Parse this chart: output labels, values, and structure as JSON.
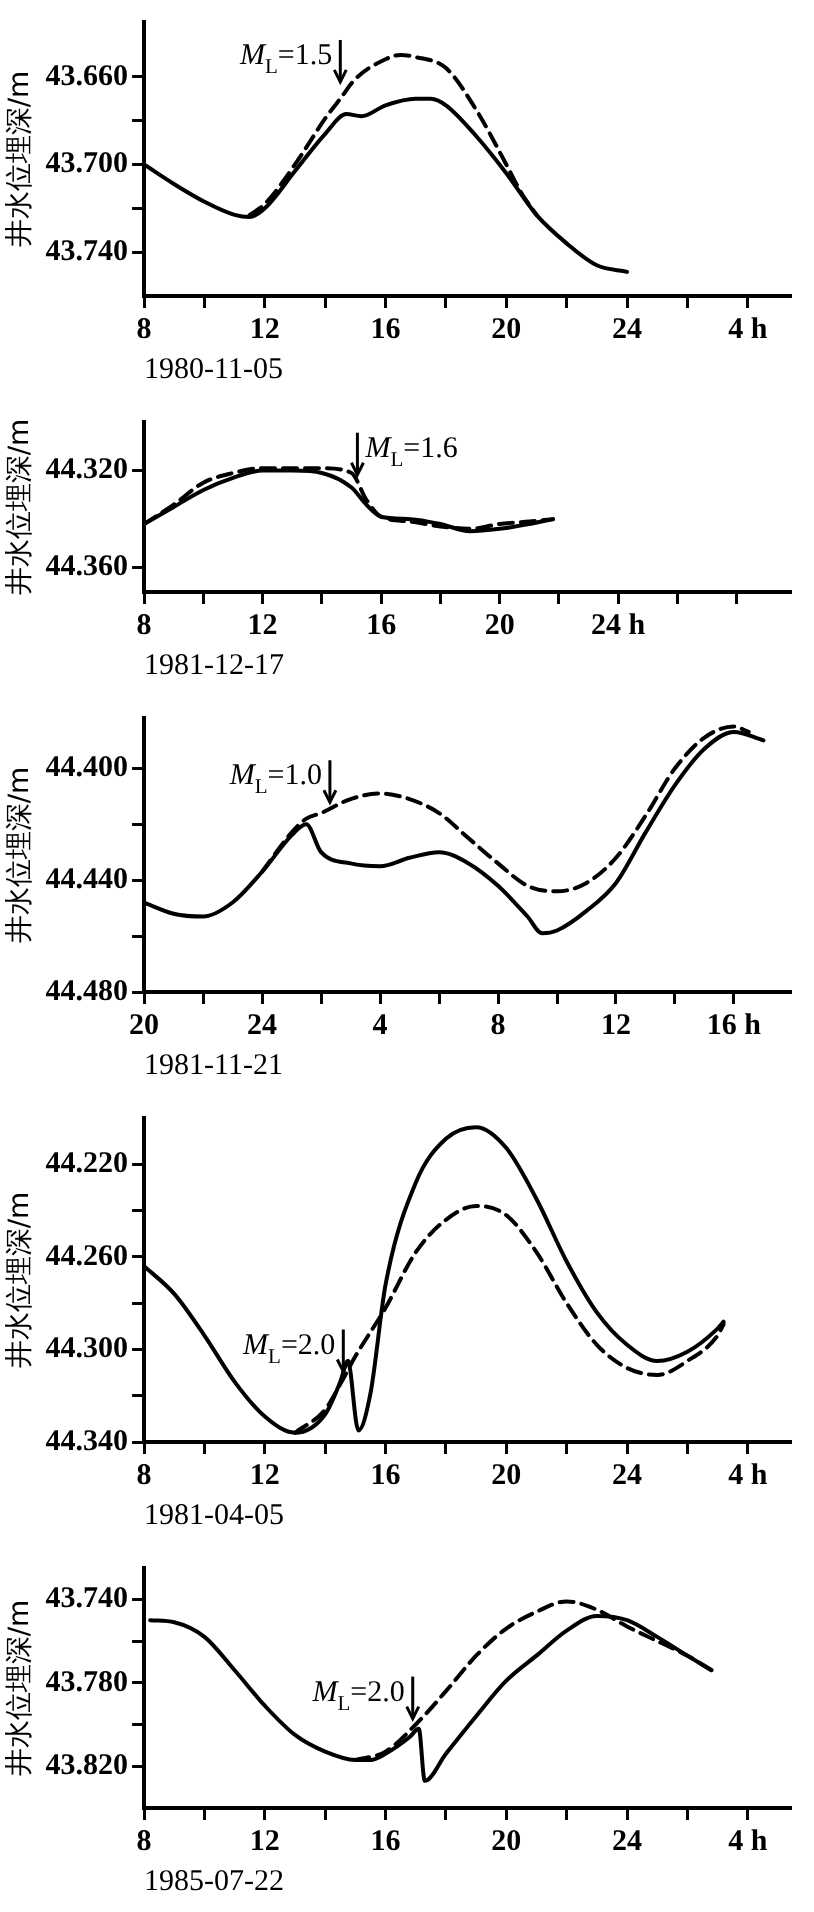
{
  "chart_data": [
    {
      "type": "line",
      "ylabel": "井水位埋深/m",
      "xlabel": "1980-11-05",
      "xlim": [
        "1980-11-05T08:00",
        "1980-11-06T05:24"
      ],
      "ylim": [
        43.76,
        43.635
      ],
      "xticks": [
        {
          "value": "1980-11-05T08:00",
          "label": "8"
        },
        {
          "value": "1980-11-05T10:00",
          "label": null
        },
        {
          "value": "1980-11-05T12:00",
          "label": "12"
        },
        {
          "value": "1980-11-05T14:00",
          "label": null
        },
        {
          "value": "1980-11-05T16:00",
          "label": "16"
        },
        {
          "value": "1980-11-05T18:00",
          "label": null
        },
        {
          "value": "1980-11-05T20:00",
          "label": "20"
        },
        {
          "value": "1980-11-05T22:00",
          "label": null
        },
        {
          "value": "1980-11-06T00:00",
          "label": "24"
        },
        {
          "value": "1980-11-06T02:00",
          "label": null
        },
        {
          "value": "1980-11-06T04:00",
          "label": "4 h"
        }
      ],
      "yticks": [
        {
          "value": 43.66,
          "label": "43.660"
        },
        {
          "value": 43.68,
          "label": null
        },
        {
          "value": 43.7,
          "label": "43.700"
        },
        {
          "value": 43.72,
          "label": null
        },
        {
          "value": 43.74,
          "label": "43.740"
        }
      ],
      "marker": "none",
      "series": [
        {
          "color": "#000000",
          "line_style": "solid",
          "x": [
            "1980-11-05T08:00",
            "1980-11-05T09:00",
            "1980-11-05T10:00",
            "1980-11-05T11:00",
            "1980-11-05T11:30",
            "1980-11-05T12:00",
            "1980-11-05T13:00",
            "1980-11-05T14:00",
            "1980-11-05T14:42",
            "1980-11-05T15:12",
            "1980-11-05T16:00",
            "1980-11-05T17:00",
            "1980-11-05T17:30",
            "1980-11-05T18:00",
            "1980-11-05T19:00",
            "1980-11-05T20:00",
            "1980-11-05T21:00",
            "1980-11-05T22:00",
            "1980-11-05T23:00",
            "1980-11-06T00:00"
          ],
          "values": [
            43.7,
            43.709,
            43.717,
            43.723,
            43.724,
            43.72,
            43.703,
            43.686,
            43.677,
            43.678,
            43.673,
            43.67,
            43.67,
            43.673,
            43.687,
            43.704,
            43.723,
            43.736,
            43.746,
            43.749
          ]
        },
        {
          "color": "#000000",
          "line_style": "dashed",
          "x": [
            "1980-11-05T11:30",
            "1980-11-05T12:00",
            "1980-11-05T13:00",
            "1980-11-05T14:00",
            "1980-11-05T14:30",
            "1980-11-05T15:00",
            "1980-11-05T16:00",
            "1980-11-05T16:30",
            "1980-11-05T17:00",
            "1980-11-05T18:00",
            "1980-11-05T19:00",
            "1980-11-05T20:00",
            "1980-11-05T20:30",
            "1980-11-05T21:00"
          ],
          "values": [
            43.723,
            43.718,
            43.7,
            43.679,
            43.67,
            43.661,
            43.652,
            43.65,
            43.651,
            43.656,
            43.675,
            43.7,
            43.713,
            43.723
          ]
        }
      ],
      "annotations": [
        {
          "text": "M$_{L}$=1.5",
          "x": "1980-11-05T14:30",
          "y": 43.666
        }
      ]
    },
    {
      "type": "line",
      "ylabel": "井水位埋深/m",
      "xlabel": "1981-12-17",
      "xlim": [
        "1981-12-17T08:00",
        "1981-12-18T05:48"
      ],
      "ylim": [
        44.37,
        44.3
      ],
      "xticks": [
        {
          "value": "1981-12-17T08:00",
          "label": "8"
        },
        {
          "value": "1981-12-17T10:00",
          "label": null
        },
        {
          "value": "1981-12-17T12:00",
          "label": "12"
        },
        {
          "value": "1981-12-17T14:00",
          "label": null
        },
        {
          "value": "1981-12-17T16:00",
          "label": "16"
        },
        {
          "value": "1981-12-17T18:00",
          "label": null
        },
        {
          "value": "1981-12-17T20:00",
          "label": "20"
        },
        {
          "value": "1981-12-17T22:00",
          "label": null
        },
        {
          "value": "1981-12-18T00:00",
          "label": "24 h"
        },
        {
          "value": "1981-12-18T02:00",
          "label": null
        },
        {
          "value": "1981-12-18T04:00",
          "label": null
        }
      ],
      "yticks": [
        {
          "value": 44.32,
          "label": "44.320"
        },
        {
          "value": 44.36,
          "label": "44.360"
        }
      ],
      "marker": "none",
      "series": [
        {
          "color": "#000000",
          "line_style": "solid",
          "x": [
            "1981-12-17T08:00",
            "1981-12-17T09:00",
            "1981-12-17T10:00",
            "1981-12-17T11:00",
            "1981-12-17T12:00",
            "1981-12-17T13:00",
            "1981-12-17T14:00",
            "1981-12-17T15:00",
            "1981-12-17T15:30",
            "1981-12-17T16:00",
            "1981-12-17T17:00",
            "1981-12-17T18:00",
            "1981-12-17T19:00",
            "1981-12-17T20:00",
            "1981-12-17T21:00",
            "1981-12-17T21:48"
          ],
          "values": [
            44.342,
            44.335,
            44.328,
            44.323,
            44.32,
            44.32,
            44.321,
            44.327,
            44.334,
            44.339,
            44.34,
            44.342,
            44.345,
            44.344,
            44.342,
            44.34
          ]
        },
        {
          "color": "#000000",
          "line_style": "dashed",
          "x": [
            "1981-12-17T08:00",
            "1981-12-17T09:00",
            "1981-12-17T10:00",
            "1981-12-17T11:00",
            "1981-12-17T12:00",
            "1981-12-17T13:00",
            "1981-12-17T14:00",
            "1981-12-17T15:00",
            "1981-12-17T15:30",
            "1981-12-17T16:00",
            "1981-12-17T17:00",
            "1981-12-17T18:00",
            "1981-12-17T19:00",
            "1981-12-17T20:00",
            "1981-12-17T21:00",
            "1981-12-17T21:48"
          ],
          "values": [
            44.342,
            44.334,
            44.325,
            44.321,
            44.319,
            44.319,
            44.319,
            44.321,
            44.332,
            44.339,
            44.341,
            44.343,
            44.344,
            44.342,
            44.341,
            44.34
          ]
        }
      ],
      "annotations": [
        {
          "text": "M$_{L}$=1.6",
          "x": "1981-12-17T15:12",
          "y": 44.325
        }
      ]
    },
    {
      "type": "line",
      "ylabel": "井水位埋深/m",
      "xlabel": "1981-11-21",
      "xlim": [
        "1981-11-21T20:00",
        "1981-11-22T17:54"
      ],
      "ylim": [
        44.48,
        44.382
      ],
      "xticks": [
        {
          "value": "1981-11-21T20:00",
          "label": "20"
        },
        {
          "value": "1981-11-21T22:00",
          "label": null
        },
        {
          "value": "1981-11-22T00:00",
          "label": "24"
        },
        {
          "value": "1981-11-22T02:00",
          "label": null
        },
        {
          "value": "1981-11-22T04:00",
          "label": "4"
        },
        {
          "value": "1981-11-22T06:00",
          "label": null
        },
        {
          "value": "1981-11-22T08:00",
          "label": "8"
        },
        {
          "value": "1981-11-22T10:00",
          "label": null
        },
        {
          "value": "1981-11-22T12:00",
          "label": "12"
        },
        {
          "value": "1981-11-22T14:00",
          "label": null
        },
        {
          "value": "1981-11-22T16:00",
          "label": "16 h"
        }
      ],
      "yticks": [
        {
          "value": 44.4,
          "label": "44.400"
        },
        {
          "value": 44.42,
          "label": null
        },
        {
          "value": 44.44,
          "label": "44.440"
        },
        {
          "value": 44.46,
          "label": null
        },
        {
          "value": 44.48,
          "label": "44.480"
        }
      ],
      "marker": "none",
      "series": [
        {
          "color": "#000000",
          "line_style": "solid",
          "x": [
            "1981-11-21T20:00",
            "1981-11-21T21:00",
            "1981-11-21T22:00",
            "1981-11-21T23:00",
            "1981-11-22T00:00",
            "1981-11-22T01:00",
            "1981-11-22T01:30",
            "1981-11-22T02:00",
            "1981-11-22T03:00",
            "1981-11-22T04:00",
            "1981-11-22T05:00",
            "1981-11-22T06:00",
            "1981-11-22T07:00",
            "1981-11-22T08:00",
            "1981-11-22T09:00",
            "1981-11-22T09:30",
            "1981-11-22T10:00",
            "1981-11-22T11:00",
            "1981-11-22T12:00",
            "1981-11-22T13:00",
            "1981-11-22T14:00",
            "1981-11-22T15:00",
            "1981-11-22T16:00",
            "1981-11-22T17:00"
          ],
          "values": [
            44.448,
            44.452,
            44.453,
            44.448,
            44.437,
            44.424,
            44.42,
            44.43,
            44.434,
            44.435,
            44.432,
            44.43,
            44.434,
            44.442,
            44.453,
            44.459,
            44.458,
            44.451,
            44.441,
            44.423,
            44.406,
            44.393,
            44.387,
            44.39
          ]
        },
        {
          "color": "#000000",
          "line_style": "dashed",
          "x": [
            "1981-11-22T00:00",
            "1981-11-22T01:00",
            "1981-11-22T01:30",
            "1981-11-22T02:00",
            "1981-11-22T03:00",
            "1981-11-22T04:00",
            "1981-11-22T05:00",
            "1981-11-22T06:00",
            "1981-11-22T07:00",
            "1981-11-22T08:00",
            "1981-11-22T09:00",
            "1981-11-22T10:00",
            "1981-11-22T11:00",
            "1981-11-22T12:00",
            "1981-11-22T13:00",
            "1981-11-22T14:00",
            "1981-11-22T15:00",
            "1981-11-22T16:00",
            "1981-11-22T16:30"
          ],
          "values": [
            44.437,
            44.423,
            44.418,
            44.416,
            44.411,
            44.409,
            44.411,
            44.416,
            44.425,
            44.434,
            44.442,
            44.444,
            44.441,
            44.432,
            44.417,
            44.4,
            44.389,
            44.385,
            44.387
          ]
        }
      ],
      "annotations": [
        {
          "text": "M$_{L}$=1.0",
          "x": "1981-11-22T02:18",
          "y": 44.415
        }
      ]
    },
    {
      "type": "line",
      "ylabel": "井水位埋深/m",
      "xlabel": "1981-04-05",
      "xlim": [
        "1981-04-05T08:00",
        "1981-04-06T05:24"
      ],
      "ylim": [
        44.34,
        44.2
      ],
      "xticks": [
        {
          "value": "1981-04-05T08:00",
          "label": "8"
        },
        {
          "value": "1981-04-05T10:00",
          "label": null
        },
        {
          "value": "1981-04-05T12:00",
          "label": "12"
        },
        {
          "value": "1981-04-05T14:00",
          "label": null
        },
        {
          "value": "1981-04-05T16:00",
          "label": "16"
        },
        {
          "value": "1981-04-05T18:00",
          "label": null
        },
        {
          "value": "1981-04-05T20:00",
          "label": "20"
        },
        {
          "value": "1981-04-05T22:00",
          "label": null
        },
        {
          "value": "1981-04-06T00:00",
          "label": "24"
        },
        {
          "value": "1981-04-06T02:00",
          "label": null
        },
        {
          "value": "1981-04-06T04:00",
          "label": "4 h"
        }
      ],
      "yticks": [
        {
          "value": 44.22,
          "label": "44.220"
        },
        {
          "value": 44.24,
          "label": null
        },
        {
          "value": 44.26,
          "label": "44.260"
        },
        {
          "value": 44.28,
          "label": null
        },
        {
          "value": 44.3,
          "label": "44.300"
        },
        {
          "value": 44.32,
          "label": null
        },
        {
          "value": 44.34,
          "label": "44.340"
        }
      ],
      "marker": "none",
      "series": [
        {
          "color": "#000000",
          "line_style": "solid",
          "x": [
            "1981-04-05T08:00",
            "1981-04-05T09:00",
            "1981-04-05T10:00",
            "1981-04-05T11:00",
            "1981-04-05T12:00",
            "1981-04-05T13:00",
            "1981-04-05T14:00",
            "1981-04-05T14:30",
            "1981-04-05T14:45",
            "1981-04-05T15:06",
            "1981-04-05T15:30",
            "1981-04-05T16:00",
            "1981-04-05T17:00",
            "1981-04-05T18:00",
            "1981-04-05T19:00",
            "1981-04-05T20:00",
            "1981-04-05T21:00",
            "1981-04-05T22:00",
            "1981-04-05T23:00",
            "1981-04-06T00:00",
            "1981-04-06T01:00",
            "1981-04-06T02:00",
            "1981-04-06T03:00",
            "1981-04-06T03:12"
          ],
          "values": [
            44.264,
            44.276,
            44.294,
            44.314,
            44.329,
            44.336,
            44.328,
            44.314,
            44.305,
            44.335,
            44.319,
            44.272,
            44.228,
            44.209,
            44.204,
            44.213,
            44.235,
            44.262,
            44.284,
            44.298,
            44.305,
            44.301,
            44.291,
            44.288
          ]
        },
        {
          "color": "#000000",
          "line_style": "dashed",
          "x": [
            "1981-04-05T13:00",
            "1981-04-05T14:00",
            "1981-04-05T14:30",
            "1981-04-05T15:00",
            "1981-04-05T16:00",
            "1981-04-05T17:00",
            "1981-04-05T18:00",
            "1981-04-05T19:00",
            "1981-04-05T20:00",
            "1981-04-05T21:00",
            "1981-04-05T22:00",
            "1981-04-05T23:00",
            "1981-04-06T00:00",
            "1981-04-06T01:00",
            "1981-04-06T02:00",
            "1981-04-06T03:00",
            "1981-04-06T03:12"
          ],
          "values": [
            44.336,
            44.326,
            44.315,
            44.303,
            44.282,
            44.258,
            44.244,
            44.238,
            44.242,
            44.258,
            44.28,
            44.298,
            44.308,
            44.311,
            44.305,
            44.294,
            44.289
          ]
        }
      ],
      "annotations": [
        {
          "text": "M$_{L}$=2.0",
          "x": "1981-04-05T14:36",
          "y": 44.313
        }
      ]
    },
    {
      "type": "line",
      "ylabel": "井水位埋深/m",
      "xlabel": "1985-07-22",
      "xlim": [
        "1985-07-22T08:00",
        "1985-07-23T05:24"
      ],
      "ylim": [
        43.84,
        43.725
      ],
      "xticks": [
        {
          "value": "1985-07-22T08:00",
          "label": "8"
        },
        {
          "value": "1985-07-22T10:00",
          "label": null
        },
        {
          "value": "1985-07-22T12:00",
          "label": "12"
        },
        {
          "value": "1985-07-22T14:00",
          "label": null
        },
        {
          "value": "1985-07-22T16:00",
          "label": "16"
        },
        {
          "value": "1985-07-22T18:00",
          "label": null
        },
        {
          "value": "1985-07-22T20:00",
          "label": "20"
        },
        {
          "value": "1985-07-22T22:00",
          "label": null
        },
        {
          "value": "1985-07-23T00:00",
          "label": "24"
        },
        {
          "value": "1985-07-23T02:00",
          "label": null
        },
        {
          "value": "1985-07-23T04:00",
          "label": "4 h"
        }
      ],
      "yticks": [
        {
          "value": 43.74,
          "label": "43.740"
        },
        {
          "value": 43.76,
          "label": null
        },
        {
          "value": 43.78,
          "label": "43.780"
        },
        {
          "value": 43.8,
          "label": null
        },
        {
          "value": 43.82,
          "label": "43.820"
        }
      ],
      "marker": "none",
      "series": [
        {
          "color": "#000000",
          "line_style": "solid",
          "x": [
            "1985-07-22T08:12",
            "1985-07-22T09:00",
            "1985-07-22T10:00",
            "1985-07-22T11:00",
            "1985-07-22T12:00",
            "1985-07-22T13:00",
            "1985-07-22T14:00",
            "1985-07-22T15:00",
            "1985-07-22T15:30",
            "1985-07-22T16:00",
            "1985-07-22T16:48",
            "1985-07-22T17:06",
            "1985-07-22T17:18",
            "1985-07-22T18:00",
            "1985-07-22T19:00",
            "1985-07-22T20:00",
            "1985-07-22T21:00",
            "1985-07-22T22:00",
            "1985-07-22T23:00",
            "1985-07-23T00:00",
            "1985-07-23T01:00",
            "1985-07-23T02:00",
            "1985-07-23T02:48"
          ],
          "values": [
            43.75,
            43.751,
            43.758,
            43.774,
            43.791,
            43.805,
            43.813,
            43.817,
            43.817,
            43.814,
            43.806,
            43.802,
            43.827,
            43.814,
            43.796,
            43.779,
            43.767,
            43.755,
            43.748,
            43.75,
            43.758,
            43.767,
            43.774
          ]
        },
        {
          "color": "#000000",
          "line_style": "dashed",
          "x": [
            "1985-07-22T15:00",
            "1985-07-22T16:00",
            "1985-07-22T17:00",
            "1985-07-22T18:00",
            "1985-07-22T19:00",
            "1985-07-22T20:00",
            "1985-07-22T21:00",
            "1985-07-22T22:00",
            "1985-07-22T23:00",
            "1985-07-23T00:00",
            "1985-07-23T01:00",
            "1985-07-23T02:00",
            "1985-07-23T02:48"
          ],
          "values": [
            43.817,
            43.813,
            43.8,
            43.784,
            43.767,
            43.754,
            43.746,
            43.741,
            43.745,
            43.753,
            43.76,
            43.767,
            43.774
          ]
        }
      ],
      "annotations": [
        {
          "text": "M$_{L}$=2.0",
          "x": "1985-07-22T16:54",
          "y": 43.801
        }
      ]
    }
  ]
}
